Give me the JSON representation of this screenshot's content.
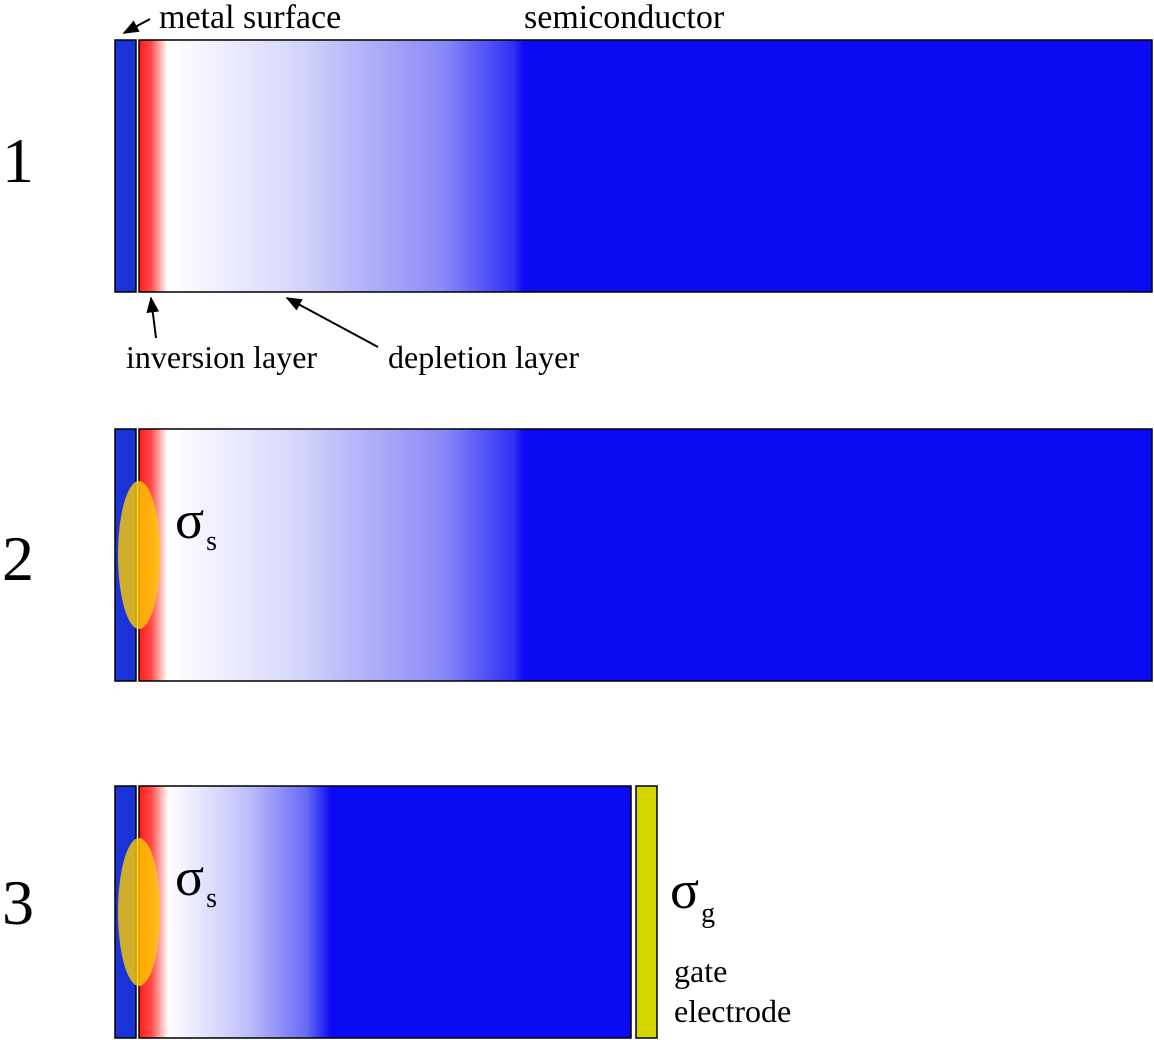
{
  "labels": {
    "metal_surface": "metal surface",
    "semiconductor": "semiconductor",
    "inversion_layer": "inversion layer",
    "depletion_layer": "depletion layer",
    "gate_line1": "gate",
    "gate_line2": "electrode"
  },
  "panels": [
    {
      "number": "1"
    },
    {
      "number": "2",
      "charge_symbol": "σ",
      "charge_sub": "s"
    },
    {
      "number": "3",
      "charge_symbol": "σ",
      "charge_sub": "s",
      "gate_symbol": "σ",
      "gate_sub": "g"
    }
  ],
  "colors": {
    "metal": "#1a33d9",
    "bulk": "#0a0af5",
    "inversion": "#ff2020",
    "charge_ellipse": "#ffcc00",
    "gate_electrode": "#d4d400",
    "outline": "#000000"
  }
}
